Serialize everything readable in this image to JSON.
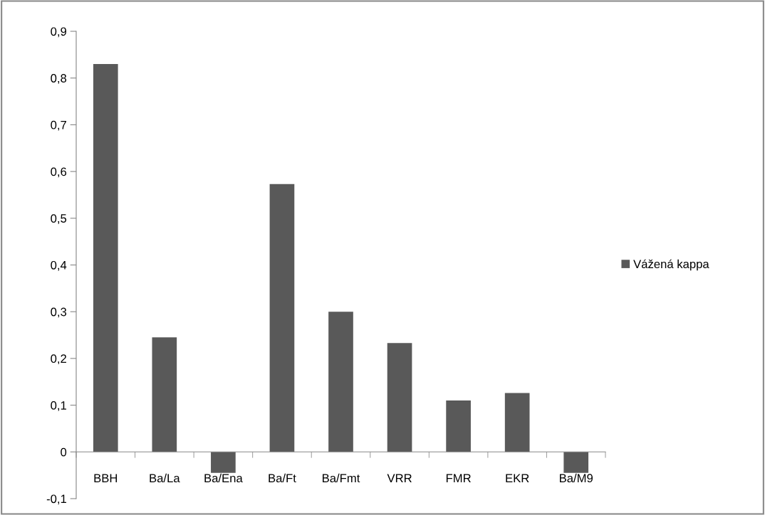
{
  "chart_data": {
    "type": "bar",
    "categories": [
      "BBH",
      "Ba/La",
      "Ba/Ena",
      "Ba/Ft",
      "Ba/Fmt",
      "VRR",
      "FMR",
      "EKR",
      "Ba/M9"
    ],
    "series": [
      {
        "name": "Vážená kappa",
        "color": "#595959",
        "values": [
          0.83,
          0.245,
          -0.045,
          0.573,
          0.3,
          0.233,
          0.11,
          0.126,
          -0.045
        ]
      }
    ],
    "ylim": [
      -0.1,
      0.9
    ],
    "yticks": [
      {
        "value": -0.1,
        "label": "-0,1"
      },
      0,
      {
        "value": 0.1,
        "label": "0,1"
      },
      {
        "value": 0.2,
        "label": "0,2"
      },
      {
        "value": 0.3,
        "label": "0,3"
      },
      {
        "value": 0.4,
        "label": "0,4"
      },
      {
        "value": 0.5,
        "label": "0,5"
      },
      {
        "value": 0.6,
        "label": "0,6"
      },
      {
        "value": 0.7,
        "label": "0,7"
      },
      {
        "value": 0.8,
        "label": "0,8"
      },
      {
        "value": 0.9,
        "label": "0,9"
      }
    ],
    "grid": false,
    "legend": "right"
  }
}
